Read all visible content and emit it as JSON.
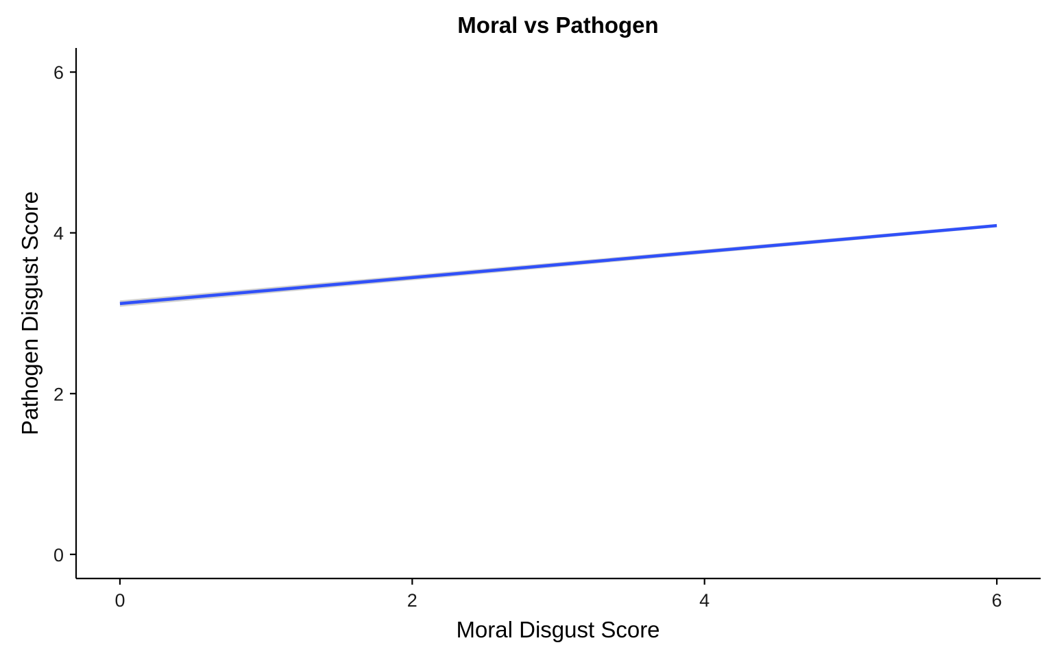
{
  "chart_data": {
    "type": "line",
    "title": "Moral vs Pathogen",
    "xlabel": "Moral Disgust Score",
    "ylabel": "Pathogen Disgust Score",
    "xlim": [
      -0.3,
      6.3
    ],
    "ylim": [
      -0.3,
      6.3
    ],
    "x_ticks": [
      0,
      2,
      4,
      6
    ],
    "y_ticks": [
      0,
      2,
      4,
      6
    ],
    "grid": false,
    "legend": "none",
    "series": [
      {
        "x": [
          0,
          6
        ],
        "y": [
          3.12,
          4.09
        ],
        "color": "#3050F8",
        "confidence_band": {
          "lower": [
            3.08,
            4.07
          ],
          "upper": [
            3.16,
            4.11
          ],
          "color": "#C8C8C8"
        }
      }
    ]
  }
}
